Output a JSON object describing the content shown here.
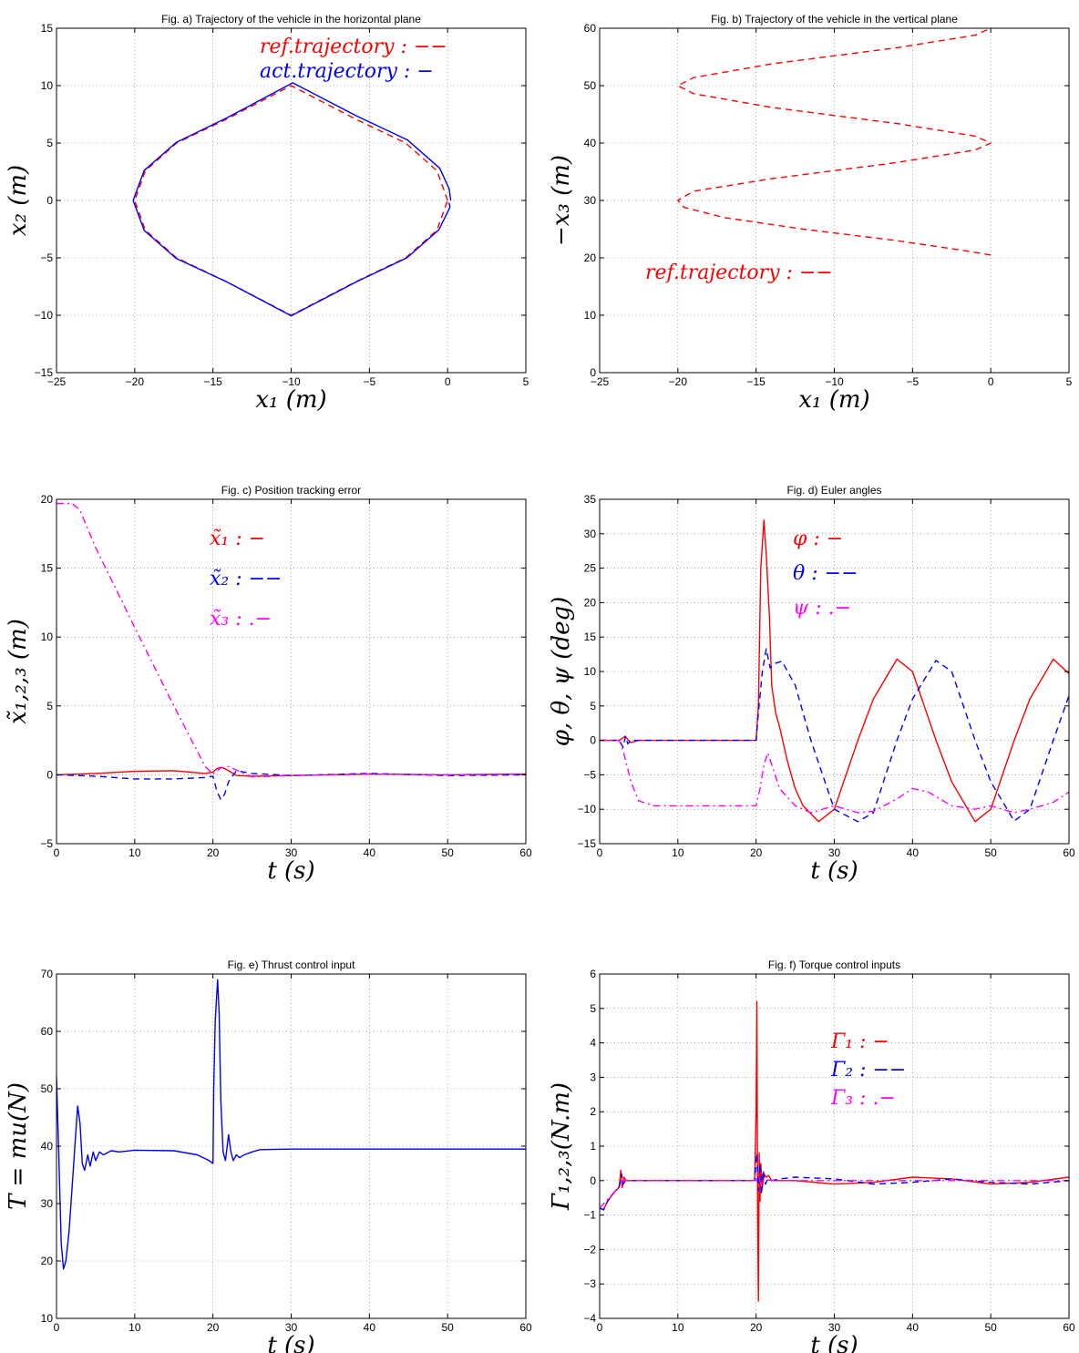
{
  "colors": {
    "red": "#ff0000",
    "blue": "#0000ff",
    "magenta": "#ff00ff"
  },
  "chart_data": [
    {
      "id": "a",
      "type": "line",
      "title": "Fig. a) Trajectory of the vehicle in the horizontal plane",
      "xlabel": "x₁ (m)",
      "ylabel": "x₂ (m)",
      "xlim": [
        -25,
        5
      ],
      "ylim": [
        -15,
        15
      ],
      "xticks": [
        -25,
        -20,
        -15,
        -10,
        -5,
        0,
        5
      ],
      "yticks": [
        -15,
        -10,
        -5,
        0,
        5,
        10,
        15
      ],
      "grid": true,
      "legend_position": "top-right",
      "series": [
        {
          "name": "ref.trajectory : −−",
          "color": "red",
          "dash": "dashed",
          "x": [
            0.0,
            -0.68,
            -2.68,
            -5.86,
            -10.0,
            -14.14,
            -17.32,
            -19.32,
            -20.0,
            -19.32,
            -17.32,
            -14.14,
            -10.0,
            -5.86,
            -2.68,
            -0.68,
            0.0
          ],
          "y": [
            0.0,
            2.59,
            5.0,
            7.07,
            10.0,
            7.07,
            5.0,
            2.59,
            0.0,
            -2.59,
            -5.0,
            -7.07,
            -10.0,
            -7.07,
            -5.0,
            -2.59,
            0.0
          ]
        },
        {
          "name": "act.trajectory : −",
          "color": "blue",
          "dash": "solid",
          "x": [
            0.2,
            0.1,
            -0.5,
            -2.55,
            -5.8,
            -9.9,
            -14.1,
            -17.35,
            -19.4,
            -20.1,
            -19.4,
            -17.35,
            -14.1,
            -10.0,
            -5.85,
            -2.6,
            -0.55,
            0.15,
            0.1
          ],
          "y": [
            0.0,
            1.0,
            2.8,
            5.25,
            7.35,
            10.25,
            7.2,
            5.05,
            2.6,
            0.0,
            -2.6,
            -5.05,
            -7.1,
            -10.05,
            -7.1,
            -5.0,
            -2.55,
            -0.6,
            -0.2
          ]
        }
      ]
    },
    {
      "id": "b",
      "type": "line",
      "title": "Fig. b) Trajectory of the vehicle in the vertical plane",
      "xlabel": "x₁ (m)",
      "ylabel": "−x₃ (m)",
      "xlim": [
        -25,
        5
      ],
      "ylim": [
        0,
        60
      ],
      "xticks": [
        -25,
        -20,
        -15,
        -10,
        -5,
        0,
        5
      ],
      "yticks": [
        0,
        10,
        20,
        30,
        40,
        50,
        60
      ],
      "grid": true,
      "legend_position": "bottom-left",
      "series": [
        {
          "name": "ref.trajectory : −−",
          "color": "red",
          "dash": "dashed",
          "x": [
            0.0,
            -2.0,
            -6.0,
            -12.0,
            -17.0,
            -19.6,
            -20.0,
            -19.0,
            -14.0,
            -6.0,
            -1.0,
            0.0,
            -1.0,
            -6.0,
            -14.0,
            -19.0,
            -20.0,
            -19.0,
            -14.0,
            -6.0,
            -1.0,
            0.0
          ],
          "y": [
            20.5,
            21.4,
            23.0,
            25.0,
            27.0,
            28.8,
            30.0,
            31.6,
            33.8,
            36.6,
            38.8,
            40.0,
            41.2,
            43.4,
            46.2,
            48.6,
            50.0,
            51.4,
            53.8,
            56.6,
            58.8,
            60.0
          ]
        }
      ]
    },
    {
      "id": "c",
      "type": "line",
      "title": "Fig. c) Position tracking error",
      "xlabel": "t (s)",
      "ylabel": "x̃₁,₂,₃ (m)",
      "xlim": [
        0,
        60
      ],
      "ylim": [
        -5,
        20
      ],
      "xticks": [
        0,
        10,
        20,
        30,
        40,
        50,
        60
      ],
      "yticks": [
        -5,
        0,
        5,
        10,
        15,
        20
      ],
      "grid": true,
      "legend_position": "top-center",
      "series": [
        {
          "name": "x̃₁ : −",
          "color": "red",
          "dash": "solid",
          "x": [
            0,
            5,
            10,
            15,
            19,
            20,
            20.5,
            21,
            21.5,
            22,
            23,
            25,
            30,
            40,
            50,
            60
          ],
          "y": [
            0.0,
            0.1,
            0.25,
            0.3,
            0.1,
            0.2,
            0.45,
            0.55,
            0.45,
            0.3,
            -0.05,
            -0.1,
            -0.05,
            0.05,
            0.0,
            0.05
          ]
        },
        {
          "name": "x̃₂ : −−",
          "color": "blue",
          "dash": "dashed",
          "x": [
            0,
            5,
            10,
            15,
            19,
            20,
            20.5,
            21,
            21.5,
            22,
            23,
            25,
            30,
            40,
            50,
            60
          ],
          "y": [
            0.0,
            -0.1,
            -0.3,
            -0.3,
            -0.2,
            -0.1,
            -1.2,
            -1.8,
            -1.4,
            -0.5,
            0.3,
            0.1,
            -0.05,
            0.1,
            -0.05,
            0.0
          ]
        },
        {
          "name": "x̃₃ : .−",
          "color": "magenta",
          "dash": "dashdot",
          "x": [
            0,
            2,
            3,
            5,
            10,
            15,
            19,
            20,
            21,
            22,
            25,
            30,
            40,
            50,
            60
          ],
          "y": [
            19.7,
            19.7,
            19.2,
            16.5,
            10.7,
            5.0,
            0.6,
            0.05,
            0.5,
            0.6,
            -0.15,
            -0.05,
            0.05,
            0.0,
            0.05
          ]
        }
      ]
    },
    {
      "id": "d",
      "type": "line",
      "title": "Fig. d) Euler angles",
      "xlabel": "t (s)",
      "ylabel": "φ, θ, ψ (deg)",
      "xlim": [
        0,
        60
      ],
      "ylim": [
        -15,
        35
      ],
      "xticks": [
        0,
        10,
        20,
        30,
        40,
        50,
        60
      ],
      "yticks": [
        -15,
        -10,
        -5,
        0,
        5,
        10,
        15,
        20,
        25,
        30,
        35
      ],
      "grid": true,
      "legend_position": "top-center",
      "series": [
        {
          "name": "φ : −",
          "color": "red",
          "dash": "solid",
          "x": [
            0,
            2.5,
            3,
            3.3,
            3.6,
            4,
            5,
            10,
            15,
            20,
            20.3,
            20.6,
            21,
            21.3,
            21.7,
            22,
            22.5,
            23,
            24,
            25,
            26,
            28,
            30,
            33,
            35,
            38,
            40,
            43,
            45,
            48,
            50,
            53,
            55,
            58,
            60
          ],
          "y": [
            0.0,
            0.0,
            0.4,
            0.6,
            0.1,
            -0.3,
            0.0,
            0.0,
            0.0,
            0.0,
            5.0,
            25.0,
            32.0,
            27.0,
            18.0,
            8.0,
            4.0,
            2.0,
            -3.0,
            -7.0,
            -9.5,
            -11.8,
            -10.0,
            0.0,
            6.0,
            11.8,
            10.0,
            0.0,
            -6.0,
            -11.8,
            -10.0,
            0.0,
            6.0,
            11.8,
            9.7
          ]
        },
        {
          "name": "θ : −−",
          "color": "blue",
          "dash": "dashed",
          "x": [
            0,
            2.5,
            3,
            3.3,
            3.6,
            4,
            5,
            10,
            15,
            20,
            20.3,
            20.8,
            21.3,
            21.8,
            22.5,
            23.3,
            25,
            27,
            30,
            33,
            35,
            38,
            40,
            43,
            45,
            48,
            50,
            53,
            55,
            58,
            60
          ],
          "y": [
            0.0,
            0.0,
            -1.0,
            0.6,
            -0.5,
            0.0,
            0.0,
            0.0,
            0.0,
            0.0,
            4.0,
            10.0,
            13.3,
            10.5,
            11.2,
            11.5,
            8.0,
            0.0,
            -10.0,
            -11.8,
            -10.5,
            0.0,
            6.0,
            11.6,
            10.0,
            0.0,
            -6.0,
            -11.7,
            -10.0,
            0.0,
            6.5
          ]
        },
        {
          "name": "ψ : .−",
          "color": "magenta",
          "dash": "dashdot",
          "x": [
            0,
            2.5,
            3,
            4,
            5,
            7,
            10,
            15,
            20,
            20.5,
            21,
            21.5,
            22,
            23,
            25,
            27,
            30,
            33,
            35,
            38,
            40,
            42,
            45,
            48,
            50,
            53,
            55,
            58,
            60
          ],
          "y": [
            0.0,
            0.0,
            -1.5,
            -6.0,
            -8.8,
            -9.5,
            -9.5,
            -9.5,
            -9.5,
            -7.0,
            -3.5,
            -1.8,
            -3.5,
            -7.0,
            -9.5,
            -10.5,
            -9.5,
            -10.5,
            -10.3,
            -8.5,
            -7.0,
            -7.5,
            -9.5,
            -10.0,
            -9.5,
            -10.5,
            -10.0,
            -9.0,
            -7.5
          ]
        }
      ]
    },
    {
      "id": "e",
      "type": "line",
      "title": "Fig. e) Thrust control input",
      "xlabel": "t (s)",
      "ylabel": "T = mu(N)",
      "xlim": [
        0,
        60
      ],
      "ylim": [
        10,
        70
      ],
      "xticks": [
        0,
        10,
        20,
        30,
        40,
        50,
        60
      ],
      "yticks": [
        10,
        20,
        30,
        40,
        50,
        60,
        70
      ],
      "grid": true,
      "legend_position": "none",
      "series": [
        {
          "name": "",
          "color": "blue",
          "dash": "solid",
          "x": [
            0,
            0.3,
            0.6,
            0.9,
            1.2,
            1.6,
            2.0,
            2.4,
            2.7,
            3.0,
            3.3,
            3.6,
            4.0,
            4.3,
            4.7,
            5.0,
            5.5,
            6.0,
            7,
            8,
            10,
            15,
            18,
            19.5,
            20.0,
            20.1,
            20.3,
            20.6,
            20.8,
            21.0,
            21.3,
            21.6,
            22.0,
            22.3,
            22.6,
            23.0,
            23.4,
            24.0,
            25,
            26,
            30,
            40,
            50,
            60
          ],
          "y": [
            52,
            38,
            23,
            18.6,
            20,
            25,
            33,
            41,
            47,
            44,
            37,
            35.8,
            38.5,
            36.5,
            39,
            37.5,
            39,
            38.5,
            39.2,
            39.0,
            39.3,
            39.2,
            38.5,
            37.5,
            37,
            50,
            62,
            69,
            63,
            48,
            39,
            37.5,
            42,
            39,
            37.5,
            38.5,
            38.0,
            38.5,
            39.0,
            39.4,
            39.5,
            39.5,
            39.5,
            39.5
          ]
        }
      ]
    },
    {
      "id": "f",
      "type": "line",
      "title": "Fig. f) Torque control inputs",
      "xlabel": "t (s)",
      "ylabel": "Γ₁,₂,₃(N.m)",
      "xlim": [
        0,
        60
      ],
      "ylim": [
        -4,
        6
      ],
      "xticks": [
        0,
        10,
        20,
        30,
        40,
        50,
        60
      ],
      "yticks": [
        -4,
        -3,
        -2,
        -1,
        0,
        1,
        2,
        3,
        4,
        5,
        6
      ],
      "grid": true,
      "legend_position": "top-center",
      "series": [
        {
          "name": "Γ₁ : −",
          "color": "red",
          "dash": "solid",
          "x": [
            0,
            0.5,
            1,
            2,
            2.5,
            2.7,
            2.9,
            3.1,
            3.4,
            4,
            10,
            19.8,
            20.0,
            20.1,
            20.2,
            20.3,
            20.4,
            20.5,
            20.6,
            20.8,
            21.0,
            21.3,
            21.6,
            22,
            23,
            25,
            30,
            35,
            40,
            45,
            50,
            55,
            60
          ],
          "y": [
            -0.8,
            -0.85,
            -0.6,
            -0.3,
            -0.2,
            0.3,
            -0.2,
            0.1,
            0.0,
            0.0,
            0.0,
            0.0,
            2.0,
            5.2,
            -1.0,
            -3.5,
            0.8,
            -0.6,
            0.5,
            -0.2,
            0.2,
            0.1,
            0.15,
            0.0,
            0.0,
            0.0,
            -0.1,
            -0.05,
            0.1,
            0.05,
            -0.1,
            -0.05,
            0.1
          ]
        },
        {
          "name": "Γ₂ : −−",
          "color": "blue",
          "dash": "dashed",
          "x": [
            0,
            0.5,
            1,
            2,
            2.5,
            2.8,
            3.0,
            3.3,
            4,
            10,
            19.8,
            20.1,
            20.3,
            20.5,
            20.7,
            20.9,
            21.2,
            21.5,
            22,
            23,
            25,
            30,
            35,
            40,
            45,
            50,
            55,
            60
          ],
          "y": [
            -0.8,
            -0.85,
            -0.6,
            -0.3,
            -0.2,
            0.2,
            -0.1,
            0.0,
            0.0,
            0.0,
            0.0,
            0.8,
            -0.3,
            0.5,
            -0.4,
            0.3,
            -0.1,
            0.05,
            0.0,
            0.05,
            0.1,
            0.05,
            -0.1,
            -0.05,
            0.05,
            -0.05,
            -0.1,
            0.0
          ]
        },
        {
          "name": "Γ₃ : .−",
          "color": "magenta",
          "dash": "dashdot",
          "x": [
            0,
            2,
            3,
            10,
            20,
            20.3,
            20.6,
            21,
            22,
            30,
            60
          ],
          "y": [
            -0.8,
            -0.3,
            0.0,
            0.0,
            0.0,
            0.2,
            -0.1,
            0.05,
            0.0,
            0.0,
            0.0
          ]
        }
      ]
    }
  ]
}
